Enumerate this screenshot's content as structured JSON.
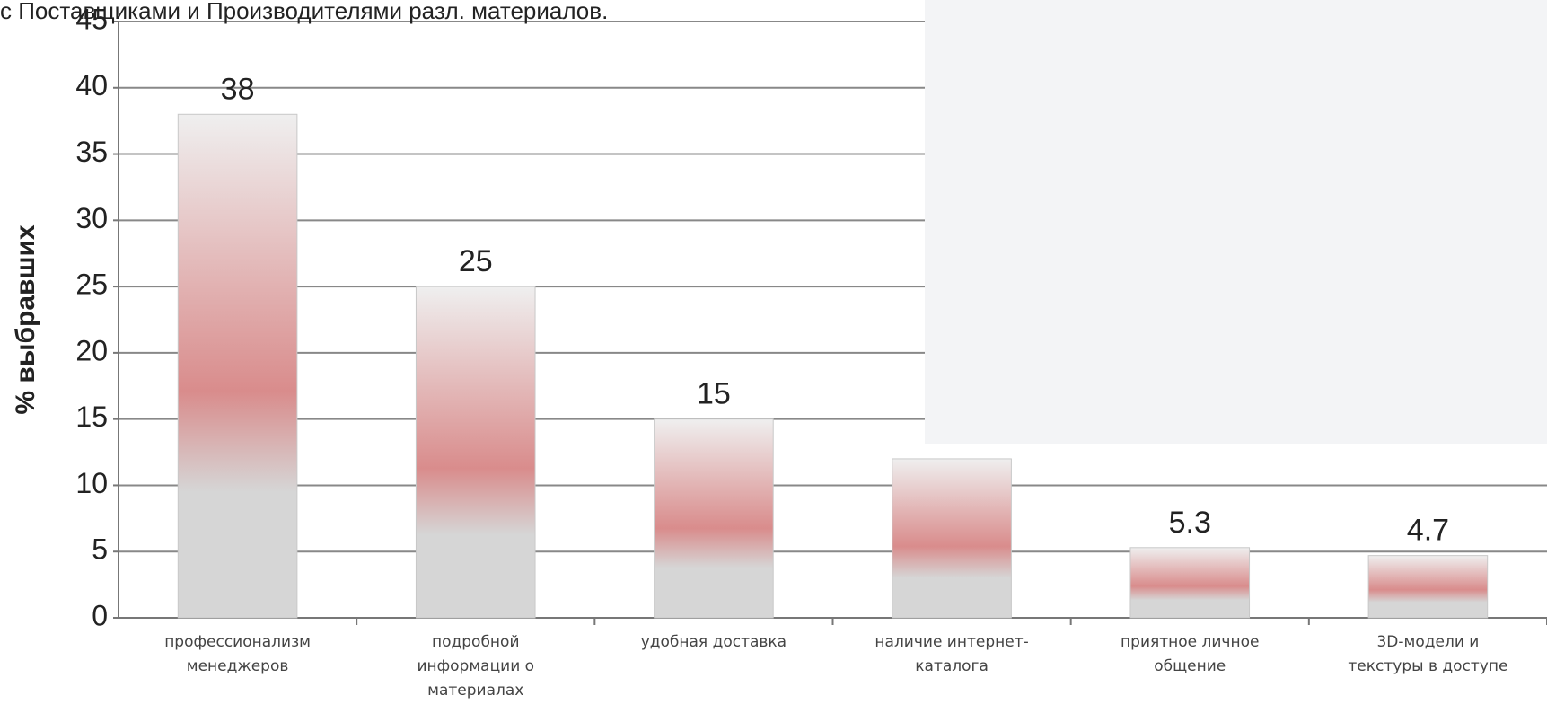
{
  "chart_data": {
    "type": "bar",
    "title": "с Поставщиками и Производителями разл. материалов.",
    "y_label": "% выбравших",
    "categories": [
      "профессионализм менеджеров",
      "подробной информации о материалах",
      "удобная доставка",
      "наличие интернет-каталога",
      "приятное личное общение",
      "3D-модели и текстуры в доступе"
    ],
    "values": [
      38,
      25,
      15,
      12,
      5.3,
      4.7
    ],
    "ylim": [
      0,
      45
    ],
    "yticks": [
      0,
      5,
      10,
      15,
      20,
      25,
      30,
      35,
      40,
      45
    ],
    "grid": true,
    "color": "#d6d6d6",
    "accent_color": "#d98c8c"
  }
}
